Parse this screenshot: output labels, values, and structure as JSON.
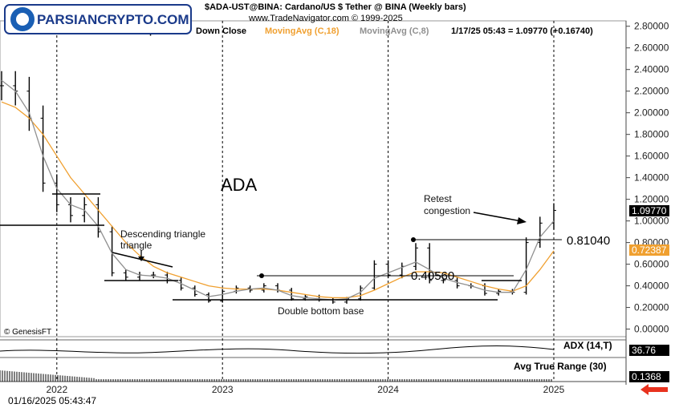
{
  "header": {
    "line1": "$ADA-UST@BINA:  Cardano/US $ Tether @ BINA  (Weekly bars)",
    "line2": "www.TradeNavigator.com © 1999-2025",
    "legend_up": "Up Close",
    "legend_down": "Down Close",
    "legend_ma18": "MovingAvg (C,18)",
    "legend_ma8": "MovingAvg (C,8)",
    "quote": "1/17/25 05:43 = 1.09770 (+0.16740)"
  },
  "logo": {
    "text": "PARSIANCRYPTO.COM"
  },
  "colors": {
    "ma18": "#f0a030",
    "ma8": "#909090",
    "bars": "#000000",
    "current_price_bg": "#000000",
    "ma_tag_bg": "#f0a030",
    "arrow": "#e8321e"
  },
  "chart_data": {
    "type": "line",
    "title": "ADA",
    "x": [
      "2021-09",
      "2021-10",
      "2021-11",
      "2021-12",
      "2022-01",
      "2022-02",
      "2022-03",
      "2022-04",
      "2022-05",
      "2022-06",
      "2022-07",
      "2022-08",
      "2022-09",
      "2022-10",
      "2022-11",
      "2022-12",
      "2023-01",
      "2023-02",
      "2023-03",
      "2023-04",
      "2023-05",
      "2023-06",
      "2023-07",
      "2023-08",
      "2023-09",
      "2023-10",
      "2023-11",
      "2023-12",
      "2024-01",
      "2024-02",
      "2024-03",
      "2024-04",
      "2024-05",
      "2024-06",
      "2024-07",
      "2024-08",
      "2024-09",
      "2024-10",
      "2024-11",
      "2024-12",
      "2025-01"
    ],
    "series": [
      {
        "name": "Close",
        "values": [
          2.25,
          2.2,
          1.95,
          1.35,
          1.15,
          1.05,
          1.15,
          0.9,
          0.52,
          0.48,
          0.5,
          0.5,
          0.45,
          0.38,
          0.32,
          0.26,
          0.35,
          0.38,
          0.36,
          0.4,
          0.36,
          0.28,
          0.3,
          0.27,
          0.25,
          0.28,
          0.38,
          0.6,
          0.5,
          0.58,
          0.75,
          0.45,
          0.45,
          0.4,
          0.4,
          0.33,
          0.35,
          0.34,
          0.8,
          0.98,
          1.0977
        ]
      },
      {
        "name": "MovingAvg (C,18)",
        "values": [
          2.1,
          2.05,
          1.95,
          1.8,
          1.6,
          1.4,
          1.25,
          1.1,
          0.95,
          0.8,
          0.68,
          0.58,
          0.52,
          0.48,
          0.44,
          0.4,
          0.38,
          0.37,
          0.37,
          0.37,
          0.36,
          0.34,
          0.32,
          0.3,
          0.29,
          0.29,
          0.31,
          0.36,
          0.42,
          0.48,
          0.53,
          0.53,
          0.52,
          0.48,
          0.44,
          0.4,
          0.37,
          0.35,
          0.4,
          0.55,
          0.72387
        ]
      },
      {
        "name": "MovingAvg (C,8)",
        "values": [
          2.3,
          2.2,
          2.0,
          1.6,
          1.3,
          1.15,
          1.1,
          0.95,
          0.7,
          0.55,
          0.5,
          0.49,
          0.47,
          0.42,
          0.36,
          0.3,
          0.32,
          0.35,
          0.37,
          0.38,
          0.36,
          0.31,
          0.29,
          0.28,
          0.27,
          0.28,
          0.34,
          0.47,
          0.52,
          0.57,
          0.62,
          0.55,
          0.47,
          0.43,
          0.4,
          0.36,
          0.34,
          0.34,
          0.55,
          0.85,
          1.0
        ]
      }
    ],
    "y_ticks": [
      "2.80000",
      "2.60000",
      "2.40000",
      "2.20000",
      "2.00000",
      "1.80000",
      "1.60000",
      "1.40000",
      "1.20000",
      "1.00000",
      "0.80000",
      "0.60000",
      "0.40000",
      "0.20000",
      "0.00000"
    ],
    "ylim": [
      -0.07,
      2.85
    ],
    "x_ticks": [
      "2022",
      "2023",
      "2024",
      "2025"
    ],
    "grid": true,
    "price_tags": {
      "current": "1.09770",
      "ma18": "0.72387"
    },
    "levels": {
      "resistance_label": "0.81040",
      "support_label": "0.40560"
    },
    "annotations": {
      "descending_triangle": "Descending triangle",
      "retest": "Retest",
      "congestion": "congestion",
      "double_bottom": "Double bottom base",
      "asset": "ADA"
    },
    "indicators": [
      {
        "name": "ADX (14,T)",
        "value": "36.76"
      },
      {
        "name": "Avg True Range (30)",
        "value": "0.1368"
      }
    ]
  },
  "footer": {
    "timestamp": "01/16/2025 05:43:47",
    "copyright": "© GenesisFT"
  }
}
